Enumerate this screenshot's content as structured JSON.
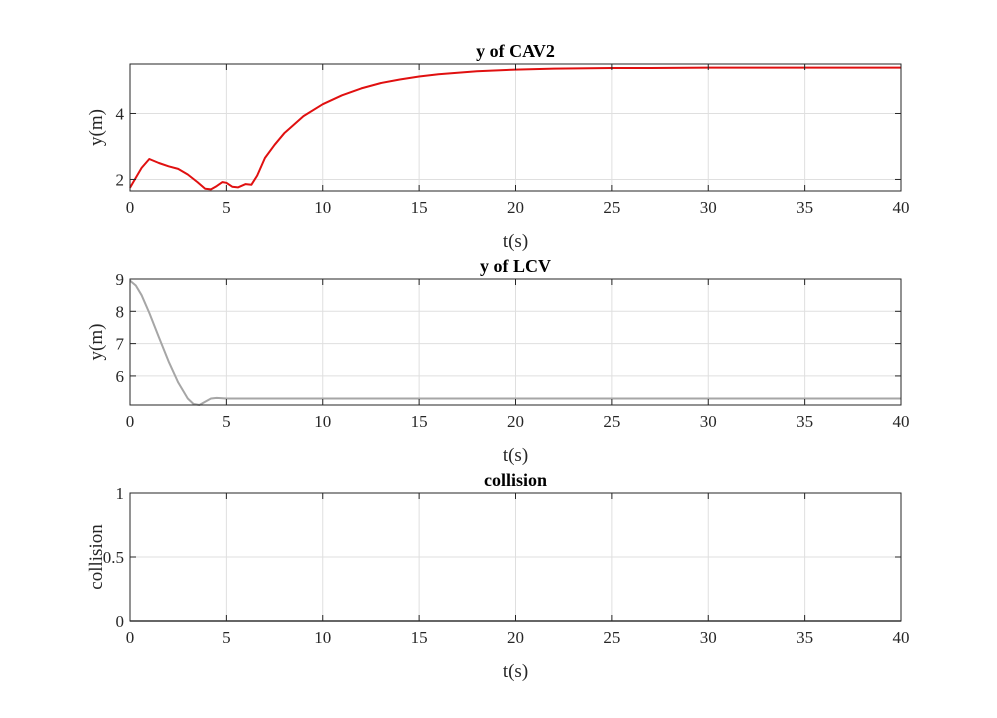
{
  "chart_data": [
    {
      "type": "line",
      "title": "y of CAV2",
      "xlabel": "t(s)",
      "ylabel": "y(m)",
      "xlim": [
        0,
        40
      ],
      "ylim": [
        1.65,
        5.5
      ],
      "xticks": [
        0,
        5,
        10,
        15,
        20,
        25,
        30,
        35,
        40
      ],
      "yticks": [
        2,
        4
      ],
      "grid": true,
      "color": "#e01010",
      "series": [
        {
          "x": [
            0,
            0.3,
            0.6,
            1.0,
            1.5,
            2.0,
            2.5,
            3.0,
            3.5,
            3.9,
            4.2,
            4.5,
            4.8,
            5.0,
            5.3,
            5.6,
            6.0,
            6.3,
            6.6,
            7.0,
            7.5,
            8.0,
            9.0,
            10.0,
            11.0,
            12.0,
            13.0,
            14.0,
            15.0,
            16.0,
            18.0,
            20.0,
            22.0,
            25.0,
            27.0,
            30.0,
            33.0,
            36.0,
            40.0
          ],
          "y": [
            1.75,
            2.05,
            2.35,
            2.62,
            2.5,
            2.4,
            2.32,
            2.15,
            1.92,
            1.72,
            1.7,
            1.8,
            1.92,
            1.9,
            1.78,
            1.76,
            1.86,
            1.84,
            2.12,
            2.65,
            3.05,
            3.4,
            3.92,
            4.28,
            4.55,
            4.76,
            4.92,
            5.03,
            5.12,
            5.19,
            5.28,
            5.33,
            5.36,
            5.38,
            5.38,
            5.39,
            5.39,
            5.39,
            5.39
          ]
        }
      ]
    },
    {
      "type": "line",
      "title": "y of LCV",
      "xlabel": "t(s)",
      "ylabel": "y(m)",
      "xlim": [
        0,
        40
      ],
      "ylim": [
        5.1,
        9.0
      ],
      "xticks": [
        0,
        5,
        10,
        15,
        20,
        25,
        30,
        35,
        40
      ],
      "yticks": [
        6,
        7,
        8,
        9
      ],
      "grid": true,
      "color": "#a6a6a6",
      "series": [
        {
          "x": [
            0,
            0.3,
            0.6,
            1.0,
            1.5,
            2.0,
            2.5,
            3.0,
            3.3,
            3.6,
            3.9,
            4.2,
            4.5,
            5.0,
            6.0,
            10.0,
            20.0,
            30.0,
            40.0
          ],
          "y": [
            8.95,
            8.8,
            8.5,
            7.95,
            7.2,
            6.45,
            5.8,
            5.3,
            5.13,
            5.1,
            5.2,
            5.3,
            5.32,
            5.3,
            5.3,
            5.3,
            5.3,
            5.3,
            5.3
          ]
        }
      ]
    },
    {
      "type": "line",
      "title": "collision",
      "xlabel": "t(s)",
      "ylabel": "collision",
      "xlim": [
        0,
        40
      ],
      "ylim": [
        0,
        1
      ],
      "xticks": [
        0,
        5,
        10,
        15,
        20,
        25,
        30,
        35,
        40
      ],
      "yticks": [
        0,
        0.5,
        1
      ],
      "grid": true,
      "color": "#a6a6a6",
      "series": [
        {
          "x": [
            0,
            40
          ],
          "y": [
            0,
            0
          ]
        }
      ]
    }
  ]
}
